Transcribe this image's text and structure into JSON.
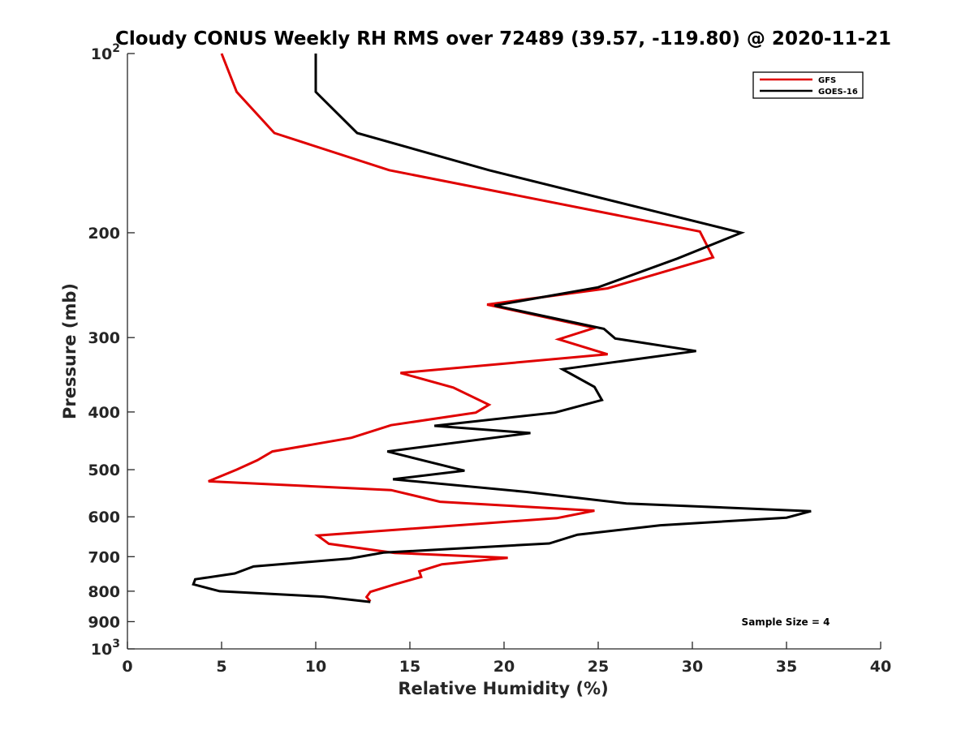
{
  "chart_data": {
    "type": "line",
    "title": "Cloudy CONUS Weekly RH RMS over 72489 (39.57, -119.80) @ 2020-11-21",
    "xlabel": "Relative Humidity (%)",
    "ylabel": "Pressure (mb)",
    "xlim": [
      0,
      40
    ],
    "ylim": [
      100,
      1000
    ],
    "y_scale": "log",
    "y_reversed": true,
    "x_ticks": [
      0,
      5,
      10,
      15,
      20,
      25,
      30,
      35,
      40
    ],
    "x_tick_labels": [
      "0",
      "5",
      "10",
      "15",
      "20",
      "25",
      "30",
      "35",
      "40"
    ],
    "y_ticks": [
      100,
      200,
      300,
      400,
      500,
      600,
      700,
      800,
      900,
      1000
    ],
    "y_tick_labels": [
      {
        "base": "10",
        "exp": "2"
      },
      {
        "base": "200",
        "exp": ""
      },
      {
        "base": "300",
        "exp": ""
      },
      {
        "base": "400",
        "exp": ""
      },
      {
        "base": "500",
        "exp": ""
      },
      {
        "base": "600",
        "exp": ""
      },
      {
        "base": "700",
        "exp": ""
      },
      {
        "base": "800",
        "exp": ""
      },
      {
        "base": "900",
        "exp": ""
      },
      {
        "base": "10",
        "exp": "3"
      }
    ],
    "grid": false,
    "legend_position": "top-right",
    "annotation": "Sample Size = 4",
    "series": [
      {
        "name": "GFS",
        "color": "#e00000",
        "points": [
          [
            5.0,
            100
          ],
          [
            5.8,
            116
          ],
          [
            7.8,
            136
          ],
          [
            13.9,
            157
          ],
          [
            30.4,
            199
          ],
          [
            31.1,
            220
          ],
          [
            25.5,
            248
          ],
          [
            19.1,
            264
          ],
          [
            24.8,
            289
          ],
          [
            22.9,
            302
          ],
          [
            25.5,
            320
          ],
          [
            14.5,
            344
          ],
          [
            17.3,
            364
          ],
          [
            19.2,
            389
          ],
          [
            18.5,
            401
          ],
          [
            14.0,
            421
          ],
          [
            11.9,
            442
          ],
          [
            7.7,
            466
          ],
          [
            6.9,
            482
          ],
          [
            5.8,
            500
          ],
          [
            4.3,
            523
          ],
          [
            14.0,
            541
          ],
          [
            16.6,
            566
          ],
          [
            24.8,
            586
          ],
          [
            22.8,
            603
          ],
          [
            10.1,
            645
          ],
          [
            10.7,
            666
          ],
          [
            14.2,
            690
          ],
          [
            20.2,
            703
          ],
          [
            16.7,
            721
          ],
          [
            15.5,
            741
          ],
          [
            15.6,
            757
          ],
          [
            14.2,
            779
          ],
          [
            12.9,
            802
          ],
          [
            12.7,
            818
          ],
          [
            12.9,
            832
          ]
        ]
      },
      {
        "name": "GOES-16",
        "color": "#000000",
        "points": [
          [
            10.0,
            100
          ],
          [
            10.0,
            116
          ],
          [
            12.2,
            136
          ],
          [
            19.2,
            157
          ],
          [
            32.6,
            200
          ],
          [
            29.2,
            221
          ],
          [
            25.0,
            247
          ],
          [
            19.5,
            265
          ],
          [
            25.3,
            290
          ],
          [
            25.9,
            301
          ],
          [
            30.2,
            316
          ],
          [
            23.1,
            339
          ],
          [
            24.8,
            363
          ],
          [
            25.2,
            382
          ],
          [
            22.7,
            401
          ],
          [
            16.3,
            422
          ],
          [
            21.4,
            434
          ],
          [
            13.8,
            466
          ],
          [
            17.9,
            502
          ],
          [
            14.1,
            519
          ],
          [
            21.2,
            545
          ],
          [
            26.5,
            570
          ],
          [
            36.3,
            587
          ],
          [
            35.0,
            602
          ],
          [
            28.3,
            620
          ],
          [
            23.9,
            643
          ],
          [
            22.4,
            665
          ],
          [
            13.6,
            689
          ],
          [
            11.8,
            705
          ],
          [
            6.7,
            727
          ],
          [
            5.7,
            747
          ],
          [
            3.6,
            764
          ],
          [
            3.5,
            779
          ],
          [
            4.9,
            800
          ],
          [
            10.4,
            817
          ],
          [
            12.9,
            834
          ]
        ]
      }
    ]
  }
}
